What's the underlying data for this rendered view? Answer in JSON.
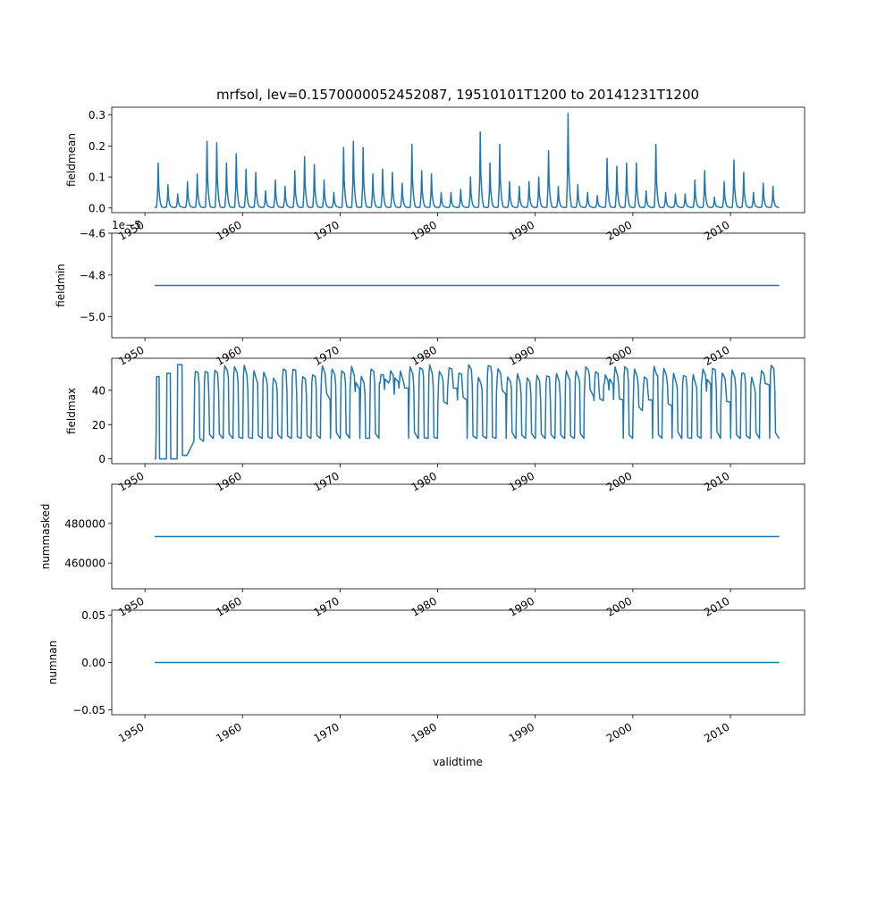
{
  "figure": {
    "title": "mrfsol, lev=0.1570000052452087, 19510101T1200 to 20141231T1200",
    "xlabel": "validtime",
    "line_color": "#1f77b4"
  },
  "chart_data": [
    {
      "type": "line",
      "ylabel": "fieldmean",
      "xlim": [
        1946.6,
        2017.6
      ],
      "ylim": [
        -0.015,
        0.325
      ],
      "xticks": [
        1950,
        1960,
        1970,
        1980,
        1990,
        2000,
        2010
      ],
      "xtick_labels": [
        "1950",
        "1960",
        "1970",
        "1980",
        "1990",
        "2000",
        "2010"
      ],
      "yticks": [
        0.0,
        0.1,
        0.2,
        0.3
      ],
      "ytick_labels": [
        "0.0",
        "0.1",
        "0.2",
        "0.3"
      ],
      "x_range": [
        1951.0,
        2015.0
      ],
      "annual_peaks": [
        {
          "year": 1951,
          "value": 0.145
        },
        {
          "year": 1952,
          "value": 0.075
        },
        {
          "year": 1953,
          "value": 0.045
        },
        {
          "year": 1954,
          "value": 0.085
        },
        {
          "year": 1955,
          "value": 0.11
        },
        {
          "year": 1956,
          "value": 0.215
        },
        {
          "year": 1957,
          "value": 0.21
        },
        {
          "year": 1958,
          "value": 0.145
        },
        {
          "year": 1959,
          "value": 0.175
        },
        {
          "year": 1960,
          "value": 0.125
        },
        {
          "year": 1961,
          "value": 0.115
        },
        {
          "year": 1962,
          "value": 0.055
        },
        {
          "year": 1963,
          "value": 0.09
        },
        {
          "year": 1964,
          "value": 0.07
        },
        {
          "year": 1965,
          "value": 0.12
        },
        {
          "year": 1966,
          "value": 0.165
        },
        {
          "year": 1967,
          "value": 0.14
        },
        {
          "year": 1968,
          "value": 0.09
        },
        {
          "year": 1969,
          "value": 0.05
        },
        {
          "year": 1970,
          "value": 0.195
        },
        {
          "year": 1971,
          "value": 0.215
        },
        {
          "year": 1972,
          "value": 0.195
        },
        {
          "year": 1973,
          "value": 0.11
        },
        {
          "year": 1974,
          "value": 0.125
        },
        {
          "year": 1975,
          "value": 0.115
        },
        {
          "year": 1976,
          "value": 0.08
        },
        {
          "year": 1977,
          "value": 0.205
        },
        {
          "year": 1978,
          "value": 0.12
        },
        {
          "year": 1979,
          "value": 0.11
        },
        {
          "year": 1980,
          "value": 0.05
        },
        {
          "year": 1981,
          "value": 0.05
        },
        {
          "year": 1982,
          "value": 0.06
        },
        {
          "year": 1983,
          "value": 0.1
        },
        {
          "year": 1984,
          "value": 0.245
        },
        {
          "year": 1985,
          "value": 0.145
        },
        {
          "year": 1986,
          "value": 0.205
        },
        {
          "year": 1987,
          "value": 0.085
        },
        {
          "year": 1988,
          "value": 0.07
        },
        {
          "year": 1989,
          "value": 0.085
        },
        {
          "year": 1990,
          "value": 0.1
        },
        {
          "year": 1991,
          "value": 0.185
        },
        {
          "year": 1992,
          "value": 0.07
        },
        {
          "year": 1993,
          "value": 0.305
        },
        {
          "year": 1994,
          "value": 0.075
        },
        {
          "year": 1995,
          "value": 0.05
        },
        {
          "year": 1996,
          "value": 0.04
        },
        {
          "year": 1997,
          "value": 0.16
        },
        {
          "year": 1998,
          "value": 0.135
        },
        {
          "year": 1999,
          "value": 0.145
        },
        {
          "year": 2000,
          "value": 0.145
        },
        {
          "year": 2001,
          "value": 0.055
        },
        {
          "year": 2002,
          "value": 0.205
        },
        {
          "year": 2003,
          "value": 0.05
        },
        {
          "year": 2004,
          "value": 0.045
        },
        {
          "year": 2005,
          "value": 0.045
        },
        {
          "year": 2006,
          "value": 0.09
        },
        {
          "year": 2007,
          "value": 0.12
        },
        {
          "year": 2008,
          "value": 0.035
        },
        {
          "year": 2009,
          "value": 0.085
        },
        {
          "year": 2010,
          "value": 0.155
        },
        {
          "year": 2011,
          "value": 0.115
        },
        {
          "year": 2012,
          "value": 0.05
        },
        {
          "year": 2013,
          "value": 0.08
        },
        {
          "year": 2014,
          "value": 0.07
        }
      ]
    },
    {
      "type": "line",
      "ylabel": "fieldmin",
      "offset_text": "1e−5",
      "xlim": [
        1946.6,
        2017.6
      ],
      "ylim": [
        -5.1,
        -4.6
      ],
      "xticks": [
        1950,
        1960,
        1970,
        1980,
        1990,
        2000,
        2010
      ],
      "xtick_labels": [
        "1950",
        "1960",
        "1970",
        "1980",
        "1990",
        "2000",
        "2010"
      ],
      "yticks": [
        -5.0,
        -4.8,
        -4.6
      ],
      "ytick_labels": [
        "−5.0",
        "−4.8",
        "−4.6"
      ],
      "x": [
        1951.0,
        2015.0
      ],
      "y": [
        -4.85,
        -4.85
      ]
    },
    {
      "type": "line",
      "ylabel": "fieldmax",
      "xlim": [
        1946.6,
        2017.6
      ],
      "ylim": [
        -2.8,
        58.7
      ],
      "xticks": [
        1950,
        1960,
        1970,
        1980,
        1990,
        2000,
        2010
      ],
      "xtick_labels": [
        "1950",
        "1960",
        "1970",
        "1980",
        "1990",
        "2000",
        "2010"
      ],
      "yticks": [
        0,
        20,
        40
      ],
      "ytick_labels": [
        "0",
        "20",
        "40"
      ],
      "x_range": [
        1951.0,
        2015.0
      ],
      "seasonal_high": 55,
      "seasonal_low": 12
    },
    {
      "type": "line",
      "ylabel": "nummasked",
      "xlim": [
        1946.6,
        2017.6
      ],
      "ylim": [
        447000,
        499800
      ],
      "xticks": [
        1950,
        1960,
        1970,
        1980,
        1990,
        2000,
        2010
      ],
      "xtick_labels": [
        "1950",
        "1960",
        "1970",
        "1980",
        "1990",
        "2000",
        "2010"
      ],
      "yticks": [
        460000,
        480000
      ],
      "ytick_labels": [
        "460000",
        "480000"
      ],
      "x": [
        1951.0,
        2015.0
      ],
      "y": [
        473400,
        473400
      ]
    },
    {
      "type": "line",
      "ylabel": "numnan",
      "xlim": [
        1946.6,
        2017.6
      ],
      "ylim": [
        -0.055,
        0.055
      ],
      "xticks": [
        1950,
        1960,
        1970,
        1980,
        1990,
        2000,
        2010
      ],
      "xtick_labels": [
        "1950",
        "1960",
        "1970",
        "1980",
        "1990",
        "2000",
        "2010"
      ],
      "yticks": [
        -0.05,
        0.0,
        0.05
      ],
      "ytick_labels": [
        "−0.05",
        "0.00",
        "0.05"
      ],
      "x": [
        1951.0,
        2015.0
      ],
      "y": [
        0.0,
        0.0
      ]
    }
  ]
}
